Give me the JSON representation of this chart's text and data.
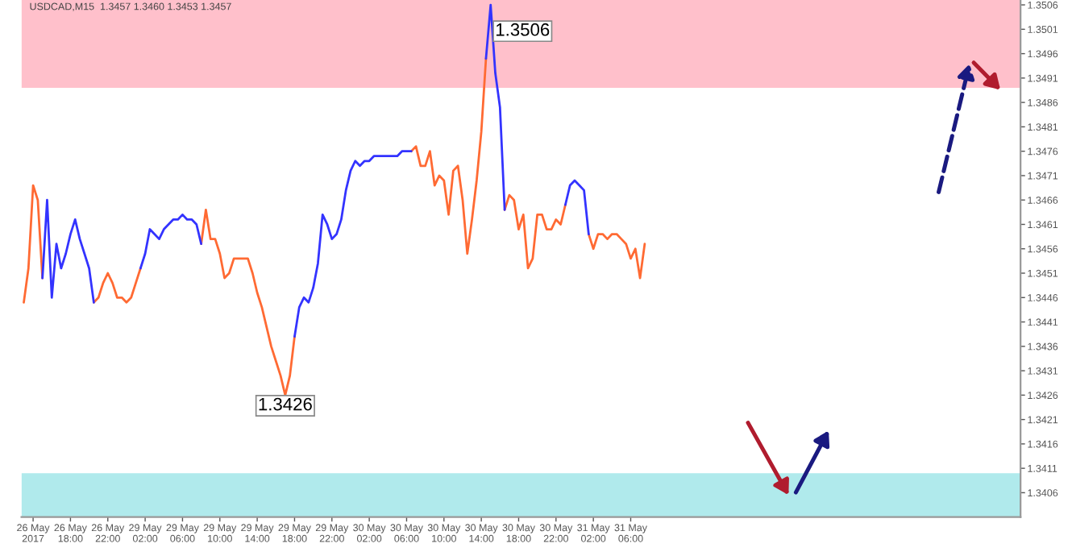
{
  "chart_data": {
    "type": "line",
    "title": "USDCAD,M15  1.3457 1.3460 1.3453 1.3457",
    "categories": [
      null,
      null,
      "26 May 2017",
      null,
      null,
      null,
      null,
      null,
      null,
      null,
      "26 May 18:00",
      null,
      null,
      null,
      null,
      null,
      null,
      null,
      "26 May 22:00",
      null,
      null,
      null,
      null,
      null,
      null,
      null,
      "29 May 02:00",
      null,
      null,
      null,
      null,
      null,
      null,
      null,
      "29 May 06:00",
      null,
      null,
      null,
      null,
      null,
      null,
      null,
      "29 May 10:00",
      null,
      null,
      null,
      null,
      null,
      null,
      null,
      "29 May 14:00",
      null,
      null,
      null,
      null,
      null,
      null,
      null,
      "29 May 18:00",
      null,
      null,
      null,
      null,
      null,
      null,
      null,
      "29 May 22:00",
      null,
      null,
      null,
      null,
      null,
      null,
      null,
      "30 May 02:00",
      null,
      null,
      null,
      null,
      null,
      null,
      null,
      "30 May 06:00",
      null,
      null,
      null,
      null,
      null,
      null,
      null,
      "30 May 10:00",
      null,
      null,
      null,
      null,
      null,
      null,
      null,
      "30 May 14:00",
      null,
      null,
      null,
      null,
      null,
      null,
      null,
      "30 May 18:00",
      null,
      null,
      null,
      null,
      null,
      null,
      null,
      "30 May 22:00",
      null,
      null,
      null,
      null,
      null,
      null,
      null,
      "31 May 02:00",
      null,
      null,
      null,
      null,
      null,
      null,
      null,
      "31 May 06:00",
      null,
      null,
      null,
      null,
      null,
      null,
      null,
      null,
      null,
      null,
      null,
      null,
      null,
      null,
      null,
      null,
      null,
      null,
      null,
      null,
      null,
      null,
      null,
      null,
      null,
      null,
      null,
      null,
      null,
      null,
      null,
      null,
      null,
      null,
      null,
      null,
      null,
      null,
      null,
      null,
      null,
      null,
      null,
      null,
      null,
      null,
      null,
      null,
      null,
      null,
      null,
      null,
      null,
      null,
      null,
      null,
      null,
      null,
      null,
      null,
      null,
      null,
      null,
      null,
      null,
      null,
      null,
      null,
      null,
      null,
      null,
      null,
      null,
      null,
      null,
      null,
      null,
      null,
      null,
      null,
      null,
      null,
      null
    ],
    "series": [
      {
        "color": "#ff6a33",
        "values": [
          1.3445,
          1.3452,
          1.3469,
          1.3466,
          1.345,
          null,
          null,
          null,
          null,
          null,
          null,
          null,
          null,
          null,
          null,
          1.3445,
          1.3446,
          1.3449,
          1.3451,
          1.3449,
          1.3446,
          1.3446,
          1.3445,
          1.3446,
          1.3449,
          1.3452,
          null,
          null,
          null,
          null,
          null,
          null,
          null,
          null,
          null,
          null,
          null,
          null,
          1.3457,
          1.3464,
          1.3458,
          1.3458,
          1.3455,
          1.345,
          1.3451,
          1.3454,
          1.3454,
          1.3454,
          1.3454,
          1.3451,
          1.3447,
          1.3444,
          1.344,
          1.3436,
          1.3433,
          1.343,
          1.3426,
          1.343,
          1.3438,
          null,
          null,
          null,
          null,
          null,
          null,
          null,
          null,
          null,
          null,
          null,
          null,
          null,
          null,
          null,
          null,
          null,
          null,
          null,
          null,
          null,
          null,
          null,
          null,
          1.3476,
          1.3477,
          1.3473,
          1.3473,
          1.3476,
          1.3469,
          1.3471,
          1.347,
          1.3463,
          1.3472,
          1.3473,
          1.3466,
          1.3455,
          1.3462,
          1.347,
          1.348,
          1.3495,
          null,
          null,
          null,
          1.3464,
          1.3467,
          1.3466,
          1.346,
          1.3463,
          1.3452,
          1.3454,
          1.3463,
          1.3463,
          1.346,
          1.346,
          1.3462,
          1.3461,
          1.3465,
          null,
          null,
          null,
          null,
          1.3459,
          1.3456,
          1.3459,
          1.3459,
          1.3458,
          1.3459,
          1.3459,
          1.3458,
          1.3457,
          1.3454,
          1.3456,
          1.345,
          1.3457,
          null,
          null,
          null,
          null,
          null,
          null,
          null,
          null,
          null,
          null,
          null,
          null,
          null,
          null,
          null,
          null,
          null,
          null,
          null,
          null,
          null,
          null,
          null,
          null,
          null,
          null,
          null,
          null,
          null,
          null,
          null,
          null,
          null,
          null,
          null,
          null,
          null,
          null,
          null,
          null,
          null,
          null,
          null,
          null,
          null,
          null,
          null,
          null,
          null,
          null,
          null,
          null,
          null,
          null,
          null,
          null,
          null,
          null,
          null,
          null,
          null,
          null,
          null,
          null,
          null,
          null,
          null,
          null,
          null,
          null,
          null,
          null,
          null,
          null,
          null,
          null,
          null,
          null,
          null,
          null
        ]
      },
      {
        "color": "#3333ff",
        "values": [
          null,
          null,
          null,
          null,
          1.345,
          1.3466,
          1.3446,
          1.3457,
          1.3452,
          1.3455,
          1.3459,
          1.3462,
          1.3458,
          1.3455,
          1.3452,
          1.3445,
          null,
          null,
          null,
          null,
          null,
          null,
          null,
          null,
          null,
          1.3452,
          1.3455,
          1.346,
          1.3459,
          1.3458,
          1.346,
          1.3461,
          1.3462,
          1.3462,
          1.3463,
          1.3462,
          1.3462,
          1.3461,
          1.3457,
          null,
          null,
          null,
          null,
          null,
          null,
          null,
          null,
          null,
          null,
          null,
          null,
          null,
          null,
          null,
          null,
          null,
          null,
          null,
          1.3438,
          1.3444,
          1.3446,
          1.3445,
          1.3448,
          1.3453,
          1.3463,
          1.3461,
          1.3458,
          1.3459,
          1.3462,
          1.3468,
          1.3472,
          1.3474,
          1.3473,
          1.3474,
          1.3474,
          1.3475,
          1.3475,
          1.3475,
          1.3475,
          1.3475,
          1.3475,
          1.3476,
          1.3476,
          1.3476,
          null,
          null,
          null,
          null,
          null,
          null,
          null,
          null,
          null,
          null,
          null,
          null,
          null,
          null,
          null,
          1.3495,
          1.3506,
          1.3492,
          1.3485,
          1.3464,
          null,
          null,
          null,
          null,
          null,
          null,
          null,
          null,
          null,
          null,
          null,
          null,
          1.3465,
          1.3469,
          1.347,
          1.3469,
          1.3468,
          1.3459,
          null,
          null,
          null,
          null,
          null,
          null,
          null,
          null,
          null,
          null,
          null,
          null,
          null,
          null,
          null,
          null,
          null,
          null,
          null,
          null,
          null,
          null,
          null,
          null,
          null,
          null,
          null,
          null,
          null,
          null,
          null,
          null,
          null,
          null,
          null,
          null,
          null,
          null,
          null,
          null,
          null,
          null,
          null,
          null,
          null,
          null,
          null,
          null,
          null,
          null,
          null,
          null,
          null,
          null,
          null,
          null,
          null,
          null,
          null,
          null,
          null,
          null,
          null,
          null,
          null,
          null,
          null,
          null,
          null,
          null,
          null,
          null,
          null,
          null,
          null,
          null,
          null,
          null,
          null,
          null,
          null,
          null,
          null,
          null,
          null,
          null,
          null,
          null,
          null,
          null,
          null,
          null
        ]
      }
    ],
    "annotations": [
      {
        "text": "1.3506",
        "y": 1.3506
      },
      {
        "text": "1.3426",
        "y": 1.3426
      }
    ],
    "bands": [
      {
        "axis": "y",
        "from": 1.3489,
        "to": 1.3507,
        "color": "#ffc0cb"
      },
      {
        "axis": "y",
        "from": 1.3401,
        "to": 1.341,
        "color": "#b0eaec"
      }
    ],
    "ylim": [
      1.3401,
      1.3507
    ],
    "yticks": [
      1.3406,
      1.3411,
      1.3416,
      1.3421,
      1.3426,
      1.3431,
      1.3436,
      1.3441,
      1.3446,
      1.3451,
      1.3456,
      1.3461,
      1.3466,
      1.3471,
      1.3476,
      1.3481,
      1.3486,
      1.3491,
      1.3496,
      1.3501,
      1.3506
    ],
    "grid": false,
    "legend": false
  }
}
